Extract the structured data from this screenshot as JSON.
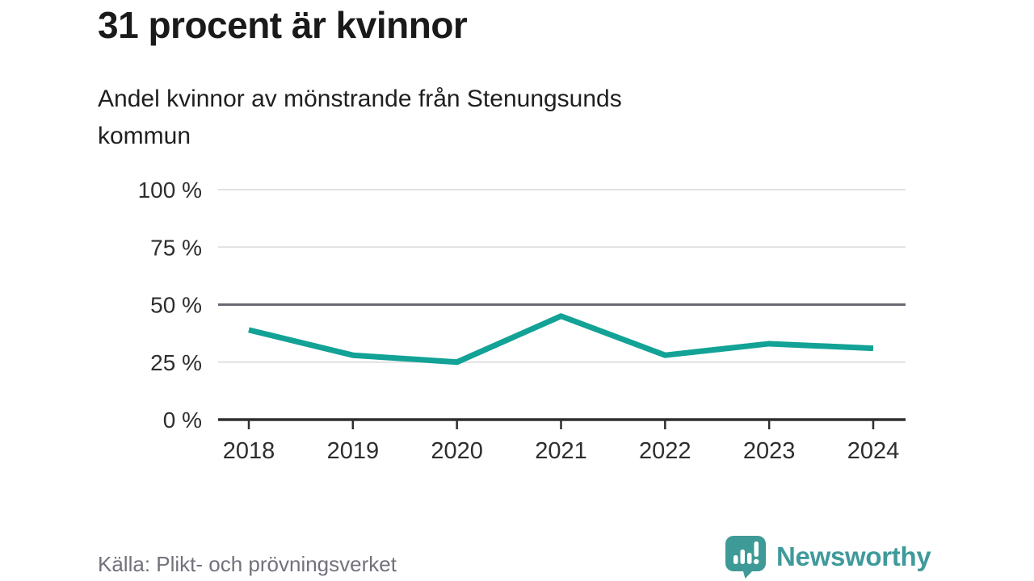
{
  "title": "31 procent är kvinnor",
  "subtitle_lines": [
    "Andel kvinnor av mönstrande från Stenungsunds",
    "kommun"
  ],
  "source": "Källa: Plikt- och prövningsverket",
  "logo": {
    "text": "Newsworthy",
    "icon": "newsworthy-speech-bubble-bar-chart-icon"
  },
  "colors": {
    "line": "#12a296",
    "grid_light": "#e1e1e1",
    "grid_emphasis": "#696973",
    "axis": "#2f2f2f",
    "tick_label": "#2e2e2e",
    "title_text": "#1a1a1a",
    "source_text": "#72727c",
    "logo_teal": "#3f9a9b",
    "logo_bubble": "#3e9a97",
    "background": "#ffffff"
  },
  "chart_data": {
    "type": "line",
    "title": "31 procent är kvinnor",
    "subtitle": "Andel kvinnor av mönstrande från Stenungsunds kommun",
    "x": [
      2018,
      2019,
      2020,
      2021,
      2022,
      2023,
      2024
    ],
    "xtick_labels": [
      "2018",
      "2019",
      "2020",
      "2021",
      "2022",
      "2023",
      "2024"
    ],
    "series": [
      {
        "name": "Andel kvinnor av mönstrande",
        "values": [
          39,
          28,
          25,
          45,
          28,
          33,
          31
        ]
      }
    ],
    "unit": "%",
    "ylim": [
      0,
      100
    ],
    "yticks": [
      0,
      25,
      50,
      75,
      100
    ],
    "ytick_labels": [
      "0 %",
      "25 %",
      "50 %",
      "75 %",
      "100 %"
    ],
    "grid": true,
    "emphasized_gridline": 50,
    "legend": "none",
    "source": "Källa: Plikt- och prövningsverket"
  }
}
